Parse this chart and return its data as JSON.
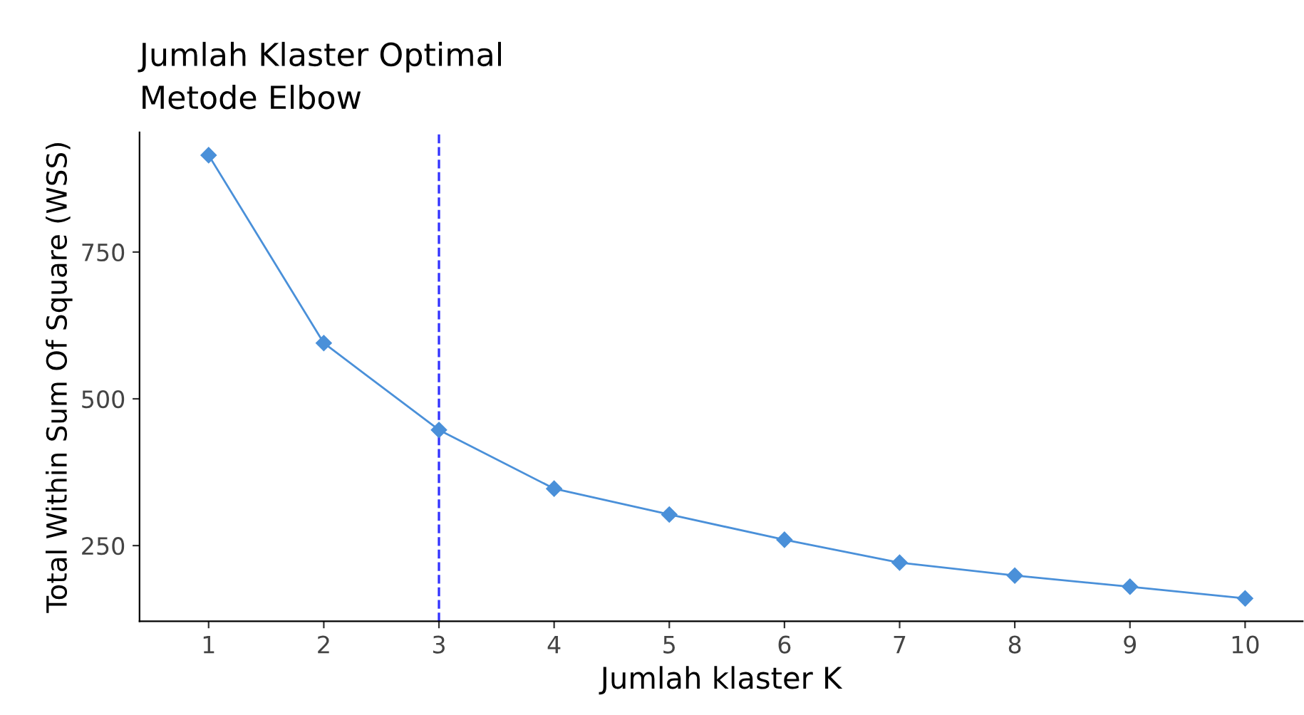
{
  "chart_data": {
    "type": "line",
    "title": "Jumlah Klaster Optimal",
    "subtitle": "Metode Elbow",
    "xlabel": "Jumlah klaster K",
    "ylabel": "Total Within Sum Of Square (WSS)",
    "x": [
      1,
      2,
      3,
      4,
      5,
      6,
      7,
      8,
      9,
      10
    ],
    "series": [
      {
        "color": "#4a90d9",
        "values": [
          915,
          595,
          447,
          347,
          303,
          260,
          221,
          199,
          180,
          160
        ]
      }
    ],
    "xlim": [
      0.4,
      10.5
    ],
    "xticks": [
      1,
      2,
      3,
      4,
      5,
      6,
      7,
      8,
      9,
      10
    ],
    "ylim": [
      121,
      954
    ],
    "yticks": [
      250,
      500,
      750
    ],
    "ref_lines": [
      {
        "axis": "x",
        "value": 3,
        "color": "#3333ff",
        "line_style": "dashed"
      }
    ],
    "marker": "diamond",
    "line_style": "solid",
    "grid": false,
    "legend": false
  }
}
